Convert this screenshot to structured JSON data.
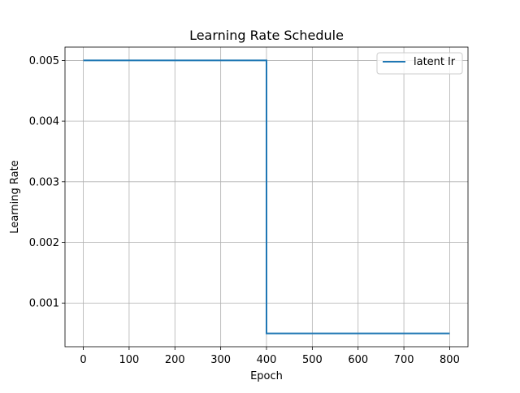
{
  "chart_data": {
    "type": "line",
    "title": "Learning Rate Schedule",
    "xlabel": "Epoch",
    "ylabel": "Learning Rate",
    "xlim": [
      -40,
      840
    ],
    "ylim": [
      0.00028,
      0.00522
    ],
    "xticks": [
      0,
      100,
      200,
      300,
      400,
      500,
      600,
      700,
      800
    ],
    "yticks": [
      0.001,
      0.002,
      0.003,
      0.004,
      0.005
    ],
    "xtick_labels": [
      "0",
      "100",
      "200",
      "300",
      "400",
      "500",
      "600",
      "700",
      "800"
    ],
    "ytick_labels": [
      "0.001",
      "0.002",
      "0.003",
      "0.004",
      "0.005"
    ],
    "grid": true,
    "legend_position": "top-right",
    "series": [
      {
        "name": "latent lr",
        "color": "#1f77b4",
        "x": [
          0,
          400,
          400,
          800
        ],
        "y": [
          0.005,
          0.005,
          0.0005,
          0.0005
        ]
      }
    ]
  }
}
